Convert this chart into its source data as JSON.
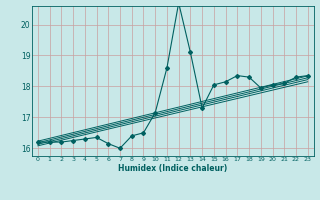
{
  "title": "",
  "xlabel": "Humidex (Indice chaleur)",
  "ylabel": "",
  "background_color": "#c8e8e8",
  "grid_color": "#c8a0a0",
  "line_color": "#006060",
  "xlim": [
    -0.5,
    23.5
  ],
  "ylim": [
    15.75,
    20.6
  ],
  "yticks": [
    16,
    17,
    18,
    19,
    20
  ],
  "xticks": [
    0,
    1,
    2,
    3,
    4,
    5,
    6,
    7,
    8,
    9,
    10,
    11,
    12,
    13,
    14,
    15,
    16,
    17,
    18,
    19,
    20,
    21,
    22,
    23
  ],
  "main_line_x": [
    0,
    1,
    2,
    3,
    4,
    5,
    6,
    7,
    8,
    9,
    10,
    11,
    12,
    13,
    14,
    15,
    16,
    17,
    18,
    19,
    20,
    21,
    22,
    23
  ],
  "main_line_y": [
    16.2,
    16.2,
    16.2,
    16.25,
    16.3,
    16.35,
    16.15,
    16.0,
    16.4,
    16.5,
    17.15,
    18.6,
    20.7,
    19.1,
    17.3,
    18.05,
    18.15,
    18.35,
    18.3,
    17.95,
    18.05,
    18.1,
    18.3,
    18.35
  ],
  "reg_lines": [
    [
      [
        0,
        23
      ],
      [
        16.08,
        18.15
      ]
    ],
    [
      [
        0,
        23
      ],
      [
        16.13,
        18.22
      ]
    ],
    [
      [
        0,
        23
      ],
      [
        16.18,
        18.28
      ]
    ],
    [
      [
        0,
        23
      ],
      [
        16.23,
        18.34
      ]
    ]
  ]
}
